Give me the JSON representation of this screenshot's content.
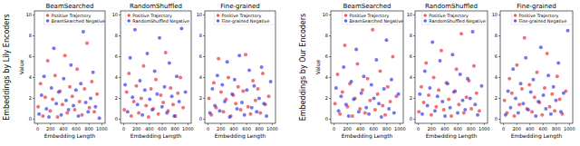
{
  "row_labels": [
    "Embeddings by Lily Encoders",
    "Embeddings by Our Encoders"
  ],
  "chart_data": [
    {
      "type": "scatter",
      "title": "BeamSearched",
      "x_label": "Embedding Length",
      "y_label": "Value",
      "xlim": [
        -50,
        1050
      ],
      "xticks": [
        0,
        200,
        400,
        600,
        800,
        1000
      ],
      "ylim": [
        -0.4,
        10.4
      ],
      "yticks": [
        0,
        2,
        4,
        6,
        8,
        10
      ],
      "grid": false,
      "legend": "upper right",
      "series": [
        {
          "name": "Positive Trajectory",
          "color": "#e8333a",
          "marker": "circle",
          "x": [
            8,
            45,
            81,
            118,
            157,
            196,
            233,
            271,
            309,
            348,
            386,
            424,
            461,
            500,
            538,
            577,
            615,
            652,
            690,
            729,
            768,
            805,
            843,
            882,
            925
          ],
          "values": [
            1.2,
            3.4,
            0.3,
            2.1,
            5.6,
            0.8,
            1.9,
            4.2,
            0.2,
            2.7,
            1.4,
            6.1,
            0.6,
            3.1,
            2.2,
            0.9,
            4.8,
            1.7,
            0.4,
            2.9,
            7.3,
            1.1,
            3.6,
            0.7,
            2.4
          ]
        },
        {
          "name": "BeamSearched Negative",
          "color": "#3a3ae8",
          "marker": "circle",
          "x": [
            22,
            60,
            99,
            137,
            175,
            214,
            252,
            290,
            328,
            366,
            405,
            443,
            481,
            519,
            557,
            596,
            634,
            672,
            710,
            748,
            786,
            824,
            862,
            900,
            960
          ],
          "values": [
            0.5,
            2.3,
            4.1,
            1.0,
            0.2,
            3.0,
            6.8,
            1.5,
            2.6,
            0.4,
            3.9,
            1.8,
            0.9,
            5.2,
            1.3,
            2.8,
            0.3,
            3.4,
            8.4,
            1.6,
            0.7,
            2.0,
            4.5,
            1.2,
            0.1
          ]
        }
      ]
    },
    {
      "type": "scatter",
      "title": "RandomShuffled",
      "x_label": "Embedding Length",
      "xlim": [
        -50,
        1050
      ],
      "xticks": [
        0,
        200,
        400,
        600,
        800,
        1000
      ],
      "ylim": [
        -0.4,
        10.4
      ],
      "yticks": [
        0,
        2,
        4,
        6,
        8,
        10
      ],
      "grid": false,
      "legend": "upper right",
      "series": [
        {
          "name": "Positive Trajectory",
          "color": "#e8333a",
          "marker": "circle",
          "x": [
            8,
            45,
            81,
            118,
            157,
            196,
            233,
            271,
            309,
            348,
            386,
            424,
            461,
            500,
            538,
            577,
            615,
            652,
            690,
            729,
            768,
            805,
            843,
            882,
            925
          ],
          "values": [
            0.9,
            2.6,
            4.4,
            0.3,
            1.7,
            3.2,
            0.6,
            2.0,
            5.1,
            1.3,
            0.2,
            2.9,
            1.0,
            3.8,
            0.5,
            2.3,
            1.6,
            6.4,
            0.8,
            3.0,
            1.4,
            0.3,
            2.5,
            4.0,
            1.1
          ]
        },
        {
          "name": "RandomShuffled Negative",
          "color": "#3a3ae8",
          "marker": "circle",
          "x": [
            22,
            60,
            99,
            137,
            175,
            214,
            252,
            290,
            328,
            366,
            405,
            443,
            481,
            519,
            557,
            596,
            634,
            672,
            710,
            748,
            786,
            824,
            862,
            900,
            960
          ],
          "values": [
            3.3,
            0.7,
            5.9,
            2.1,
            8.6,
            1.4,
            3.7,
            0.4,
            2.8,
            6.3,
            1.9,
            0.9,
            4.6,
            2.4,
            7.8,
            1.2,
            3.1,
            0.6,
            5.4,
            2.2,
            0.3,
            4.1,
            1.7,
            8.7,
            2.6
          ]
        }
      ]
    },
    {
      "type": "scatter",
      "title": "Fine-grained",
      "x_label": "Embedding Length",
      "xlim": [
        -50,
        1050
      ],
      "xticks": [
        0,
        200,
        400,
        600,
        800,
        1000
      ],
      "ylim": [
        -0.4,
        10.4
      ],
      "yticks": [
        0,
        2,
        4,
        6,
        8,
        10
      ],
      "grid": false,
      "legend": "upper right",
      "series": [
        {
          "name": "Positive Trajectory",
          "color": "#e8333a",
          "marker": "circle",
          "x": [
            14,
            52,
            90,
            126,
            163,
            203,
            240,
            279,
            317,
            355,
            393,
            432,
            470,
            508,
            546,
            585,
            623,
            661,
            699,
            737,
            776,
            814,
            852,
            891,
            945
          ],
          "values": [
            2.0,
            0.4,
            3.5,
            1.1,
            5.8,
            2.6,
            0.7,
            1.9,
            4.0,
            0.3,
            2.3,
            1.5,
            3.1,
            0.9,
            2.7,
            6.2,
            1.2,
            0.5,
            3.7,
            1.8,
            2.9,
            0.6,
            4.4,
            1.4,
            2.2
          ]
        },
        {
          "name": "Fine-grained Negative",
          "color": "#3a3ae8",
          "marker": "circle",
          "x": [
            30,
            68,
            107,
            145,
            183,
            222,
            260,
            298,
            337,
            375,
            413,
            451,
            489,
            528,
            566,
            604,
            642,
            680,
            718,
            757,
            795,
            833,
            871,
            910,
            975
          ],
          "values": [
            0.6,
            2.9,
            1.3,
            4.2,
            0.8,
            3.3,
            1.7,
            5.5,
            0.2,
            2.4,
            3.8,
            1.0,
            6.1,
            1.6,
            0.4,
            2.8,
            4.7,
            1.1,
            3.2,
            0.7,
            2.0,
            5.0,
            1.5,
            0.3,
            3.6
          ]
        }
      ]
    },
    {
      "type": "scatter",
      "title": "BeamSearched",
      "x_label": "Embedding Length",
      "y_label": "Value",
      "xlim": [
        -50,
        1050
      ],
      "xticks": [
        0,
        200,
        400,
        600,
        800,
        1000
      ],
      "ylim": [
        -0.4,
        10.4
      ],
      "yticks": [
        0,
        2,
        4,
        6,
        8,
        10
      ],
      "grid": false,
      "legend": "upper right",
      "series": [
        {
          "name": "Positive Trajectory",
          "color": "#e8333a",
          "marker": "circle",
          "x": [
            14,
            52,
            90,
            126,
            163,
            203,
            240,
            279,
            317,
            355,
            393,
            432,
            470,
            508,
            546,
            585,
            623,
            661,
            699,
            737,
            776,
            814,
            852,
            891,
            945
          ],
          "values": [
            1.5,
            4.3,
            0.5,
            2.6,
            7.1,
            1.2,
            3.4,
            0.3,
            2.0,
            5.3,
            1.0,
            2.8,
            0.6,
            3.9,
            1.8,
            8.6,
            0.9,
            2.4,
            4.6,
            1.3,
            0.4,
            3.1,
            1.7,
            6.0,
            2.2
          ]
        },
        {
          "name": "BeamSearched Negative",
          "color": "#3a3ae8",
          "marker": "circle",
          "x": [
            30,
            68,
            107,
            145,
            183,
            222,
            260,
            298,
            337,
            375,
            413,
            451,
            489,
            528,
            566,
            604,
            642,
            680,
            718,
            757,
            795,
            833,
            871,
            910,
            975
          ],
          "values": [
            3.0,
            0.8,
            2.2,
            5.0,
            1.4,
            0.3,
            3.6,
            1.9,
            6.7,
            0.7,
            2.5,
            4.1,
            1.1,
            0.5,
            3.3,
            2.0,
            5.7,
            1.5,
            0.2,
            2.9,
            7.6,
            1.0,
            3.8,
            0.6,
            2.4
          ]
        }
      ]
    },
    {
      "type": "scatter",
      "title": "RandomShuffled",
      "x_label": "Embedding Length",
      "xlim": [
        -50,
        1050
      ],
      "xticks": [
        0,
        200,
        400,
        600,
        800,
        1000
      ],
      "ylim": [
        -0.4,
        10.4
      ],
      "yticks": [
        0,
        2,
        4,
        6,
        8,
        10
      ],
      "grid": false,
      "legend": "upper right",
      "series": [
        {
          "name": "Positive Trajectory",
          "color": "#e8333a",
          "marker": "circle",
          "x": [
            8,
            45,
            81,
            118,
            157,
            196,
            233,
            271,
            309,
            348,
            386,
            424,
            461,
            500,
            538,
            577,
            615,
            652,
            690,
            729,
            768,
            805,
            843,
            882,
            925
          ],
          "values": [
            0.7,
            3.1,
            1.6,
            5.4,
            2.3,
            0.4,
            4.0,
            1.2,
            2.8,
            6.6,
            0.9,
            3.5,
            1.9,
            0.3,
            2.6,
            4.8,
            1.4,
            8.2,
            0.6,
            2.1,
            3.7,
            1.0,
            5.1,
            2.5,
            0.8
          ]
        },
        {
          "name": "RandomShuffled Negative",
          "color": "#3a3ae8",
          "marker": "circle",
          "x": [
            22,
            60,
            99,
            137,
            175,
            214,
            252,
            290,
            328,
            366,
            405,
            443,
            481,
            519,
            557,
            596,
            634,
            672,
            710,
            748,
            786,
            824,
            862,
            900,
            960
          ],
          "values": [
            2.4,
            0.5,
            4.6,
            1.3,
            3.0,
            7.4,
            0.8,
            2.2,
            5.6,
            1.7,
            0.3,
            3.4,
            1.1,
            6.2,
            2.7,
            0.6,
            4.3,
            1.8,
            0.9,
            3.9,
            2.0,
            8.4,
            1.4,
            0.4,
            3.2
          ]
        }
      ]
    },
    {
      "type": "scatter",
      "title": "Fine-grained",
      "x_label": "Embedding Length",
      "xlim": [
        -50,
        1050
      ],
      "xticks": [
        0,
        200,
        400,
        600,
        800,
        1000
      ],
      "ylim": [
        -0.4,
        10.4
      ],
      "yticks": [
        0,
        2,
        4,
        6,
        8,
        10
      ],
      "grid": false,
      "legend": "upper right",
      "series": [
        {
          "name": "Positive Trajectory",
          "color": "#e8333a",
          "marker": "circle",
          "x": [
            14,
            52,
            90,
            126,
            163,
            203,
            240,
            279,
            317,
            355,
            393,
            432,
            470,
            508,
            546,
            585,
            623,
            661,
            699,
            737,
            776,
            814,
            852,
            891,
            945
          ],
          "values": [
            1.8,
            0.6,
            3.9,
            2.5,
            0.3,
            5.2,
            1.4,
            2.9,
            7.8,
            1.0,
            3.3,
            0.7,
            2.1,
            4.5,
            1.6,
            0.4,
            3.0,
            6.3,
            1.2,
            2.4,
            0.8,
            4.1,
            1.9,
            0.5,
            2.7
          ]
        },
        {
          "name": "Fine-grained Negative",
          "color": "#3a3ae8",
          "marker": "circle",
          "x": [
            30,
            68,
            107,
            145,
            183,
            222,
            260,
            298,
            337,
            375,
            413,
            451,
            489,
            528,
            566,
            604,
            642,
            680,
            718,
            757,
            795,
            833,
            871,
            910,
            975
          ],
          "values": [
            0.4,
            2.7,
            1.1,
            4.8,
            2.0,
            0.6,
            3.4,
            1.5,
            5.9,
            0.9,
            2.6,
            3.8,
            0.3,
            1.7,
            6.9,
            2.3,
            1.0,
            4.2,
            0.5,
            3.1,
            1.8,
            5.4,
            0.7,
            2.5,
            8.5
          ]
        }
      ]
    }
  ]
}
